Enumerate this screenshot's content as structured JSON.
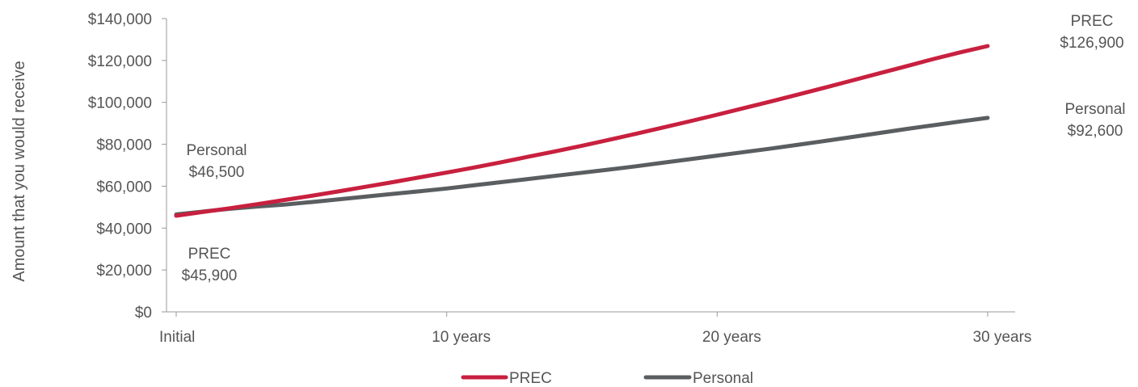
{
  "chart_data": {
    "type": "line",
    "title": "",
    "ylabel": "Amount  that you would receive",
    "xlabel": "",
    "x": [
      0,
      1,
      2,
      3,
      4,
      5,
      6,
      7,
      8,
      9,
      10,
      11,
      12,
      13,
      14,
      15,
      16,
      17,
      18,
      19,
      20,
      21,
      22,
      23,
      24,
      25,
      26,
      27,
      28,
      29,
      30
    ],
    "x_ticks": [
      {
        "value": 0,
        "label": "Initial"
      },
      {
        "value": 10,
        "label": "10 years"
      },
      {
        "value": 20,
        "label": "20 years"
      },
      {
        "value": 30,
        "label": "30 years"
      }
    ],
    "ylim": [
      0,
      140000
    ],
    "y_ticks": [
      {
        "value": 0,
        "label": "$0"
      },
      {
        "value": 20000,
        "label": "$20,000"
      },
      {
        "value": 40000,
        "label": "$40,000"
      },
      {
        "value": 60000,
        "label": "$60,000"
      },
      {
        "value": 80000,
        "label": "$80,000"
      },
      {
        "value": 100000,
        "label": "$100,000"
      },
      {
        "value": 120000,
        "label": "$120,000"
      },
      {
        "value": 140000,
        "label": "$140,000"
      }
    ],
    "grid": false,
    "legend_position": "bottom-center",
    "series": [
      {
        "name": "PREC",
        "color": "#C8203F",
        "values": [
          45900,
          47700,
          49500,
          51400,
          53400,
          55400,
          57500,
          59700,
          61900,
          64200,
          66500,
          68900,
          71400,
          74000,
          76600,
          79300,
          82100,
          85000,
          88000,
          91000,
          94100,
          97300,
          100500,
          103800,
          107100,
          110500,
          113900,
          117300,
          120700,
          123900,
          126900
        ]
      },
      {
        "name": "Personal",
        "color": "#5A5E61",
        "values": [
          46500,
          47900,
          49200,
          50300,
          51200,
          52400,
          53700,
          55000,
          56300,
          57600,
          58900,
          60400,
          61900,
          63400,
          64900,
          66400,
          67900,
          69500,
          71200,
          72900,
          74600,
          76300,
          78000,
          79800,
          81600,
          83500,
          85400,
          87300,
          89100,
          90900,
          92600
        ]
      }
    ],
    "annotations": [
      {
        "series": "Personal",
        "point": "start",
        "line1": "Personal",
        "line2": "$46,500"
      },
      {
        "series": "PREC",
        "point": "start",
        "line1": "PREC",
        "line2": "$45,900"
      },
      {
        "series": "PREC",
        "point": "end",
        "line1": "PREC",
        "line2": "$126,900"
      },
      {
        "series": "Personal",
        "point": "end",
        "line1": "Personal",
        "line2": "$92,600"
      }
    ]
  }
}
